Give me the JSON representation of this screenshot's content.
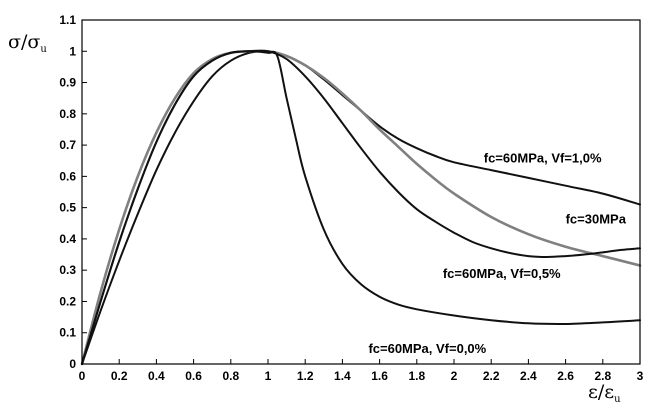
{
  "chart_data": {
    "type": "line",
    "title": "",
    "xlabel": "ε/εu",
    "ylabel": "σ/σu",
    "xlim": [
      0,
      3
    ],
    "ylim": [
      0,
      1.1
    ],
    "x_ticks": [
      "0",
      "0.2",
      "0.4",
      "0.6",
      "0.8",
      "1",
      "1.2",
      "1.4",
      "1.6",
      "1.8",
      "2",
      "2.2",
      "2.4",
      "2.6",
      "2.8",
      "3"
    ],
    "y_ticks": [
      "0",
      "0.1",
      "0.2",
      "0.3",
      "0.4",
      "0.5",
      "0.6",
      "0.7",
      "0.8",
      "0.9",
      "1",
      "1.1"
    ],
    "grid": false,
    "legend": "none",
    "series": [
      {
        "name": "fc=60MPa, Vf=1,0%",
        "color": "#111111",
        "x": [
          0,
          0.1,
          0.2,
          0.3,
          0.4,
          0.5,
          0.6,
          0.7,
          0.8,
          0.9,
          1.0,
          1.1,
          1.2,
          1.3,
          1.4,
          1.5,
          1.6,
          1.7,
          1.8,
          1.9,
          2.0,
          2.2,
          2.4,
          2.6,
          2.8,
          3.0
        ],
        "y": [
          0,
          0.17,
          0.33,
          0.48,
          0.62,
          0.74,
          0.84,
          0.92,
          0.97,
          0.995,
          1.0,
          0.985,
          0.955,
          0.91,
          0.86,
          0.81,
          0.76,
          0.72,
          0.69,
          0.665,
          0.645,
          0.62,
          0.595,
          0.57,
          0.545,
          0.51
        ]
      },
      {
        "name": "fc=30MPa",
        "color": "#808080",
        "x": [
          0,
          0.1,
          0.2,
          0.3,
          0.4,
          0.5,
          0.6,
          0.7,
          0.8,
          0.9,
          1.0,
          1.1,
          1.2,
          1.3,
          1.4,
          1.5,
          1.6,
          1.7,
          1.8,
          1.9,
          2.0,
          2.2,
          2.4,
          2.6,
          2.8,
          3.0
        ],
        "y": [
          0,
          0.23,
          0.43,
          0.6,
          0.74,
          0.85,
          0.93,
          0.975,
          0.995,
          1.0,
          1.0,
          0.985,
          0.955,
          0.915,
          0.865,
          0.81,
          0.75,
          0.695,
          0.64,
          0.59,
          0.545,
          0.47,
          0.415,
          0.375,
          0.345,
          0.315
        ]
      },
      {
        "name": "fc=60MPa, Vf=0,5%",
        "color": "#111111",
        "x": [
          0,
          0.1,
          0.2,
          0.3,
          0.4,
          0.5,
          0.6,
          0.7,
          0.8,
          0.9,
          1.0,
          1.1,
          1.2,
          1.3,
          1.4,
          1.5,
          1.6,
          1.7,
          1.8,
          1.9,
          2.0,
          2.1,
          2.2,
          2.3,
          2.4,
          2.5,
          2.6,
          2.7,
          2.8,
          2.9,
          3.0
        ],
        "y": [
          0,
          0.2,
          0.39,
          0.56,
          0.71,
          0.83,
          0.92,
          0.97,
          0.995,
          1.0,
          1.0,
          0.975,
          0.92,
          0.85,
          0.77,
          0.69,
          0.615,
          0.55,
          0.495,
          0.455,
          0.42,
          0.39,
          0.37,
          0.355,
          0.345,
          0.342,
          0.345,
          0.35,
          0.357,
          0.365,
          0.37
        ]
      },
      {
        "name": "fc=60MPa, Vf=0,0%",
        "color": "#111111",
        "x": [
          0,
          0.1,
          0.2,
          0.3,
          0.4,
          0.5,
          0.6,
          0.7,
          0.8,
          0.9,
          1.0,
          1.05,
          1.1,
          1.15,
          1.2,
          1.3,
          1.4,
          1.5,
          1.6,
          1.7,
          1.8,
          2.0,
          2.2,
          2.4,
          2.6,
          2.8,
          3.0
        ],
        "y": [
          0,
          0.2,
          0.39,
          0.56,
          0.71,
          0.83,
          0.92,
          0.97,
          0.995,
          1.0,
          0.995,
          0.985,
          0.85,
          0.72,
          0.6,
          0.43,
          0.32,
          0.255,
          0.215,
          0.19,
          0.175,
          0.155,
          0.14,
          0.13,
          0.128,
          0.133,
          0.14
        ]
      }
    ],
    "annotations": [
      {
        "text": "fc=60MPa, Vf=1,0%",
        "x": 2.16,
        "y": 0.645
      },
      {
        "text": "fc=30MPa",
        "x": 2.6,
        "y": 0.45
      },
      {
        "text": "fc=60MPa, Vf=0,5%",
        "x": 1.94,
        "y": 0.275
      },
      {
        "text": "fc=60MPa, Vf=0,0%",
        "x": 1.54,
        "y": 0.035
      }
    ]
  }
}
